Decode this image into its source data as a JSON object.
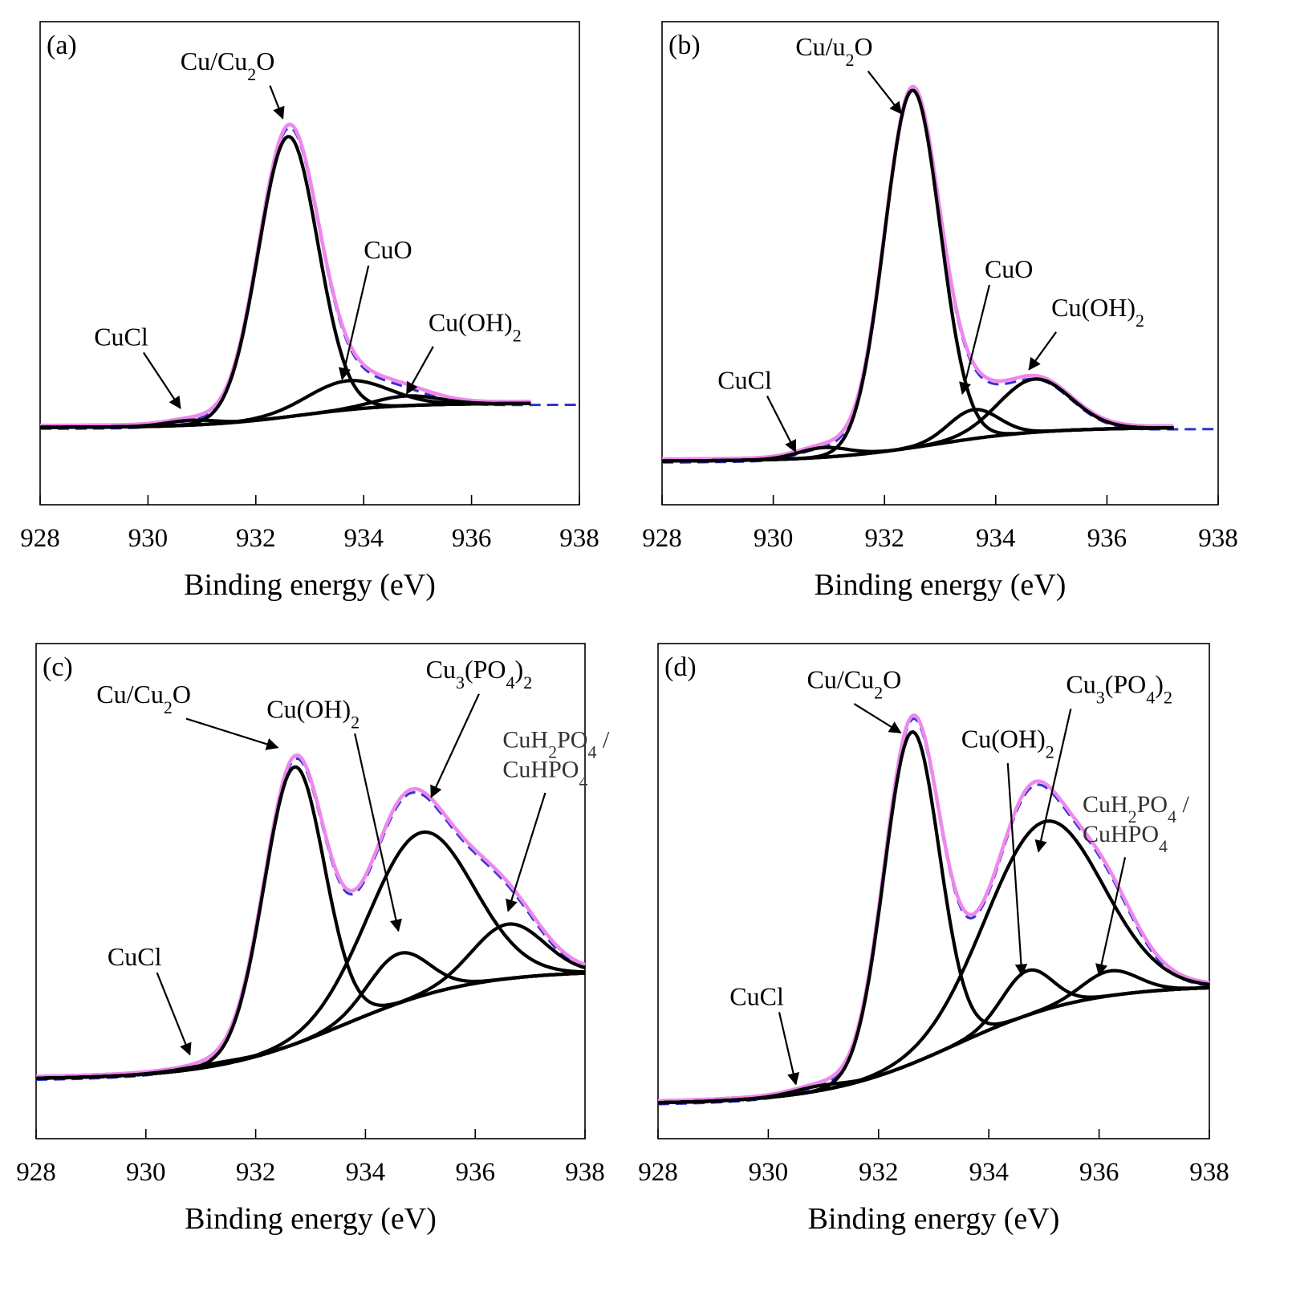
{
  "chart_data": [
    {
      "type": "line",
      "panel_label": "(a)",
      "xlabel": "Binding energy  (eV)",
      "xlim": [
        928,
        938
      ],
      "ylim": [
        0,
        1
      ],
      "x_ticks": [
        928,
        930,
        932,
        934,
        936,
        938
      ],
      "x_tick_labels": [
        "928",
        "930",
        "932",
        "934",
        "936",
        "938"
      ],
      "fit_end": 937.1,
      "background": {
        "low": 0.16,
        "high": 0.21,
        "center": 932.8,
        "width": 0.9
      },
      "components": [
        {
          "label": "CuCl",
          "center": 930.8,
          "height": 0.01,
          "sigma": 0.45
        },
        {
          "label": "Cu/Cu₂O",
          "center": 932.6,
          "height": 0.58,
          "sigma": 0.55
        },
        {
          "label": "CuO",
          "center": 933.7,
          "height": 0.06,
          "sigma": 0.75
        },
        {
          "label": "Cu(OH)₂",
          "center": 934.8,
          "height": 0.02,
          "sigma": 0.6
        }
      ],
      "annotations": [
        {
          "text": "CuCl",
          "x": 929.0,
          "y": 0.33,
          "target_x": 930.6,
          "target_y": 0.2
        },
        {
          "text": "Cu/Cu₂O",
          "x": 930.6,
          "y": 0.9,
          "target_x": 932.5,
          "target_y": 0.8
        },
        {
          "text": "CuO",
          "x": 934.0,
          "y": 0.51,
          "target_x": 933.6,
          "target_y": 0.26
        },
        {
          "text": "Cu(OH)₂",
          "x": 935.2,
          "y": 0.36,
          "target_x": 934.8,
          "target_y": 0.23
        }
      ]
    },
    {
      "type": "line",
      "panel_label": "(b)",
      "xlabel": "Binding energy  (eV)",
      "xlim": [
        928,
        938
      ],
      "ylim": [
        0,
        1
      ],
      "x_ticks": [
        928,
        930,
        932,
        934,
        936,
        938
      ],
      "x_tick_labels": [
        "928",
        "930",
        "932",
        "934",
        "936",
        "938"
      ],
      "fit_end": 937.2,
      "background": {
        "low": 0.09,
        "high": 0.16,
        "center": 932.9,
        "width": 1.0
      },
      "components": [
        {
          "label": "CuCl",
          "center": 930.9,
          "height": 0.02,
          "sigma": 0.45
        },
        {
          "label": "Cu/u₂O",
          "center": 932.5,
          "height": 0.74,
          "sigma": 0.5
        },
        {
          "label": "CuO",
          "center": 933.6,
          "height": 0.06,
          "sigma": 0.45
        },
        {
          "label": "Cu(OH)₂",
          "center": 934.7,
          "height": 0.11,
          "sigma": 0.65
        }
      ],
      "annotations": [
        {
          "text": "CuCl",
          "x": 929.0,
          "y": 0.24,
          "target_x": 930.4,
          "target_y": 0.11
        },
        {
          "text": "Cu/u₂O",
          "x": 930.4,
          "y": 0.93,
          "target_x": 932.3,
          "target_y": 0.81
        },
        {
          "text": "CuO",
          "x": 933.8,
          "y": 0.47,
          "target_x": 933.4,
          "target_y": 0.23
        },
        {
          "text": "Cu(OH)₂",
          "x": 935.0,
          "y": 0.39,
          "target_x": 934.6,
          "target_y": 0.28
        }
      ]
    },
    {
      "type": "line",
      "panel_label": "(c)",
      "xlabel": "Binding energy  (eV)",
      "xlim": [
        928,
        938
      ],
      "ylim": [
        0,
        1
      ],
      "x_ticks": [
        928,
        930,
        932,
        934,
        936,
        938
      ],
      "x_tick_labels": [
        "928",
        "930",
        "932",
        "934",
        "936",
        "938"
      ],
      "fit_end": 938.0,
      "background": {
        "low": 0.12,
        "high": 0.34,
        "center": 933.6,
        "width": 1.2
      },
      "components": [
        {
          "label": "CuCl",
          "center": 931.2,
          "height": 0.005,
          "sigma": 0.6
        },
        {
          "label": "Cu/Cu₂O",
          "center": 932.7,
          "height": 0.56,
          "sigma": 0.55
        },
        {
          "label": "Cu(OH)₂",
          "center": 934.6,
          "height": 0.1,
          "sigma": 0.55
        },
        {
          "label": "Cu₃(PO₄)₂",
          "center": 935.0,
          "height": 0.33,
          "sigma": 0.95
        },
        {
          "label": "CuH₂PO₄ / CuHPO₄",
          "center": 936.6,
          "height": 0.11,
          "sigma": 0.65
        }
      ],
      "annotations": [
        {
          "text": "CuCl",
          "x": 929.3,
          "y": 0.35,
          "target_x": 930.8,
          "target_y": 0.17
        },
        {
          "text": "Cu/Cu₂O",
          "x": 929.1,
          "y": 0.88,
          "target_x": 932.4,
          "target_y": 0.79
        },
        {
          "text": "Cu(OH)₂",
          "x": 932.2,
          "y": 0.85,
          "target_x": 934.6,
          "target_y": 0.42
        },
        {
          "text": "Cu₃(PO₄)₂",
          "x": 935.1,
          "y": 0.93,
          "target_x": 935.2,
          "target_y": 0.69
        },
        {
          "text": "CuH₂PO₄ /",
          "x": 936.5,
          "y": 0.79
        },
        {
          "text": "CuHPO₄",
          "x": 936.5,
          "y": 0.73,
          "target_x": 936.6,
          "target_y": 0.46
        }
      ]
    },
    {
      "type": "line",
      "panel_label": "(d)",
      "xlabel": "Binding energy  (eV)",
      "xlim": [
        928,
        938
      ],
      "ylim": [
        0,
        1
      ],
      "x_ticks": [
        928,
        930,
        932,
        934,
        936,
        938
      ],
      "x_tick_labels": [
        "928",
        "930",
        "932",
        "934",
        "936",
        "938"
      ],
      "fit_end": 938.0,
      "background": {
        "low": 0.07,
        "high": 0.31,
        "center": 933.4,
        "width": 1.2
      },
      "components": [
        {
          "label": "CuCl",
          "center": 930.9,
          "height": 0.01,
          "sigma": 0.45
        },
        {
          "label": "Cu/Cu₂O",
          "center": 932.6,
          "height": 0.67,
          "sigma": 0.5
        },
        {
          "label": "Cu(OH)₂",
          "center": 934.7,
          "height": 0.09,
          "sigma": 0.45
        },
        {
          "label": "Cu₃(PO₄)₂",
          "center": 935.0,
          "height": 0.38,
          "sigma": 1.05
        },
        {
          "label": "CuH₂PO₄ / CuHPO₄",
          "center": 936.2,
          "height": 0.05,
          "sigma": 0.5
        }
      ],
      "annotations": [
        {
          "text": "CuCl",
          "x": 929.3,
          "y": 0.27,
          "target_x": 930.5,
          "target_y": 0.11
        },
        {
          "text": "Cu/Cu₂O",
          "x": 930.7,
          "y": 0.91,
          "target_x": 932.4,
          "target_y": 0.82
        },
        {
          "text": "Cu(OH)₂",
          "x": 933.5,
          "y": 0.79,
          "target_x": 934.6,
          "target_y": 0.33
        },
        {
          "text": "Cu₃(PO₄)₂",
          "x": 935.4,
          "y": 0.9,
          "target_x": 934.9,
          "target_y": 0.58
        },
        {
          "text": "CuH₂PO₄ /",
          "x": 935.7,
          "y": 0.66
        },
        {
          "text": "CuHPO₄",
          "x": 935.7,
          "y": 0.6,
          "target_x": 936.0,
          "target_y": 0.33
        }
      ]
    }
  ],
  "colors": {
    "component": "#000000",
    "envelope": "#ee88ee",
    "experimental": "#3333cc"
  }
}
